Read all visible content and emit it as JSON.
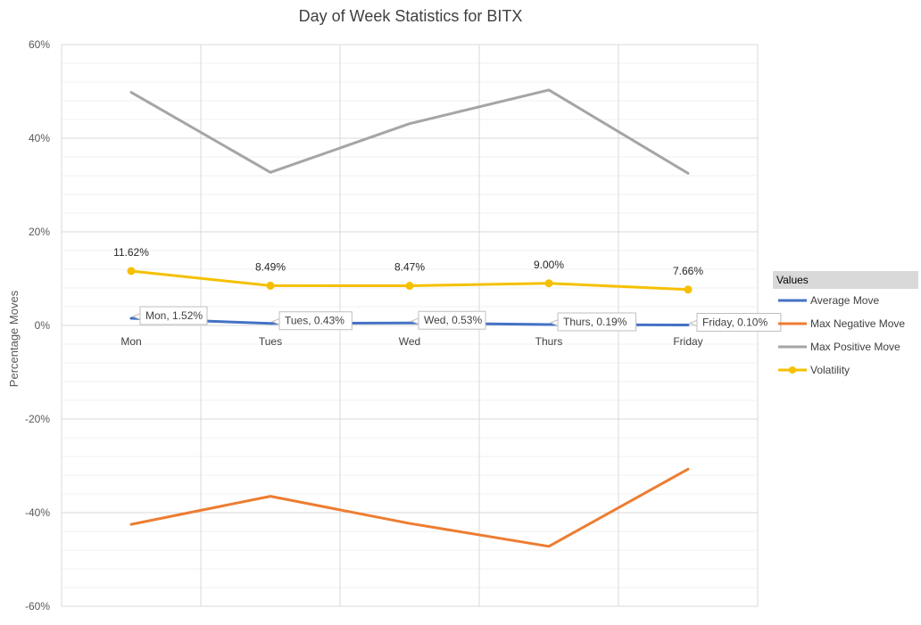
{
  "chart_data": {
    "type": "line",
    "title": "Day of Week Statistics for BITX",
    "xlabel": "",
    "ylabel": "Percentage Moves",
    "categories": [
      "Mon",
      "Tues",
      "Wed",
      "Thurs",
      "Friday"
    ],
    "y_ticks": [
      "60%",
      "40%",
      "20%",
      "0%",
      "-20%",
      "-40%",
      "-60%"
    ],
    "ylim": [
      -60,
      60
    ],
    "grid": true,
    "legend_position": "right",
    "legend_title": "Values",
    "series": [
      {
        "name": "Average Move",
        "color": "#4472c4",
        "markers": false,
        "values": [
          1.52,
          0.43,
          0.53,
          0.19,
          0.1
        ],
        "callouts": [
          "Mon, 1.52%",
          "Tues, 0.43%",
          "Wed, 0.53%",
          "Thurs, 0.19%",
          "Friday, 0.10%"
        ]
      },
      {
        "name": "Max Negative Move",
        "color": "#ed7d31",
        "markers": false,
        "values": [
          -42.5,
          -36.5,
          -42.3,
          -47.2,
          -30.7
        ]
      },
      {
        "name": "Max Positive Move",
        "color": "#a5a5a5",
        "markers": false,
        "values": [
          49.8,
          32.7,
          43.1,
          50.3,
          32.5
        ]
      },
      {
        "name": "Volatility",
        "color": "#f5c000",
        "markers": true,
        "values": [
          11.62,
          8.49,
          8.47,
          9.0,
          7.66
        ],
        "labels": [
          "11.62%",
          "8.49%",
          "8.47%",
          "9.00%",
          "7.66%"
        ]
      }
    ]
  }
}
